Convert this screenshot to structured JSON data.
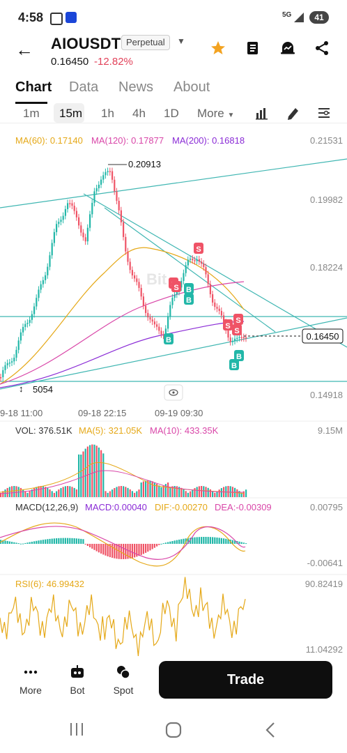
{
  "status": {
    "time": "4:58",
    "network": "5G",
    "battery": "41"
  },
  "header": {
    "pair": "AIOUSDT",
    "badge": "Perpetual",
    "price": "0.16450",
    "change": "-12.82%",
    "change_color": "#e2425a"
  },
  "tabs": [
    {
      "label": "Chart",
      "active": true
    },
    {
      "label": "Data"
    },
    {
      "label": "News"
    },
    {
      "label": "About"
    }
  ],
  "intervals": {
    "items": [
      "1m",
      "15m",
      "1h",
      "4h",
      "1D",
      "More"
    ],
    "selected": "15m"
  },
  "indicators": {
    "ma60": "MA(60): 0.17140",
    "ma120": "MA(120): 0.17877",
    "ma200": "MA(200): 0.16818",
    "colors": {
      "ma60": "#e5a817",
      "ma120": "#d946a8",
      "ma200": "#8a2bd6",
      "up": "#22b7a8",
      "down": "#ef5366"
    }
  },
  "price_axis": [
    "0.21531",
    "0.19982",
    "0.18224",
    "0.16450",
    "0.14918"
  ],
  "price_labels": {
    "high": "0.20913",
    "low": "5054",
    "current": "0.16450"
  },
  "time_axis": [
    "9-18 11:00",
    "09-18 22:15",
    "09-19 09:30"
  ],
  "volume": {
    "vol": "VOL: 376.51K",
    "ma5": "MA(5): 321.05K",
    "ma10": "MA(10): 433.35K",
    "max": "9.15M"
  },
  "macd": {
    "params": "MACD(12,26,9)",
    "macd": "MACD:0.00040",
    "dif": "DIF:-0.00270",
    "dea": "DEA:-0.00309",
    "top": "0.00795",
    "bottom": "-0.00641"
  },
  "rsi": {
    "label": "RSI(6): 46.99432",
    "top": "90.82419",
    "bottom": "11.04292"
  },
  "bottom": {
    "more": "More",
    "bot": "Bot",
    "spot": "Spot",
    "trade": "Trade"
  },
  "markers": {
    "sell": "S",
    "buy": "B"
  },
  "watermark": "Bit"
}
